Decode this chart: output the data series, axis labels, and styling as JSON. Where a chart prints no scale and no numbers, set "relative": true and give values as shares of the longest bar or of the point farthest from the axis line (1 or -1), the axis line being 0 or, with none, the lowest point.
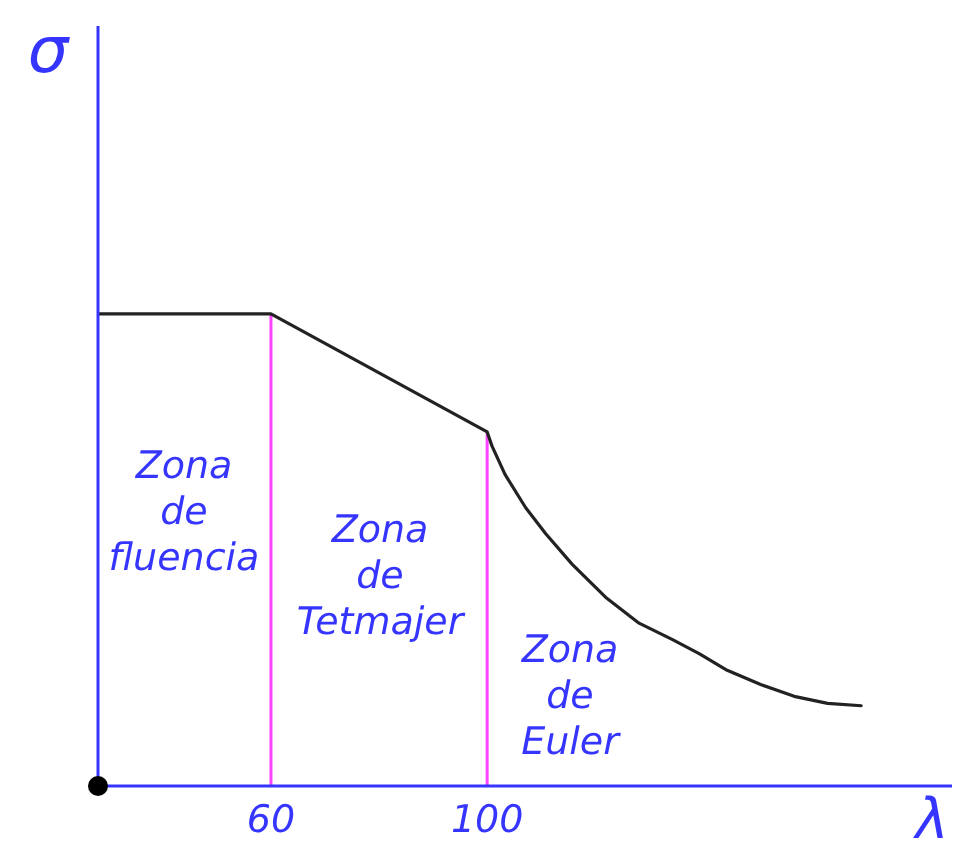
{
  "chart_data": {
    "type": "line",
    "xlabel": "λ",
    "ylabel": "σ",
    "relative": true,
    "x": [
      28,
      60,
      100,
      100.9,
      103.3,
      107.1,
      110.8,
      115.7,
      121.9,
      128.1,
      134.3,
      139.3,
      144.4,
      150.6,
      156.8,
      163,
      169.2
    ],
    "series": [
      {
        "color": "#222222",
        "values": [
          1,
          1,
          0.75,
          0.72,
          0.66,
          0.59,
          0.535,
          0.47,
          0.4,
          0.345,
          0.31,
          0.28,
          0.245,
          0.215,
          0.19,
          0.175,
          0.17
        ]
      }
    ],
    "xlim": [
      28,
      186
    ],
    "xticks": [
      60,
      100
    ],
    "ref_lines": [
      {
        "axis": "x",
        "value": 60,
        "color": "#ff44ff"
      },
      {
        "axis": "x",
        "value": 100,
        "color": "#ff44ff"
      }
    ],
    "annotations": [
      "Zona de fluencia",
      "Zona de Tetmajer",
      "Zona de Euler"
    ],
    "marker": "none"
  }
}
